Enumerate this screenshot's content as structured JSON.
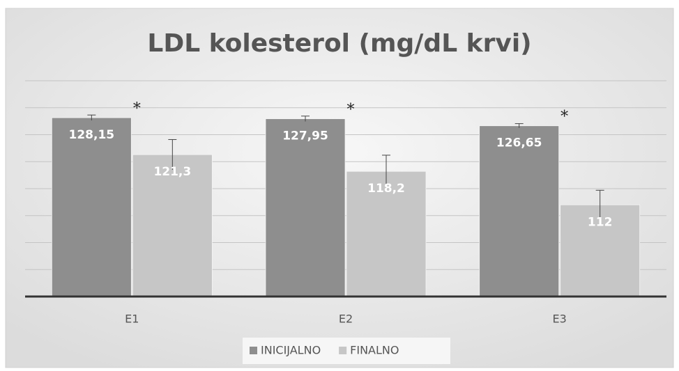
{
  "chart_data": {
    "type": "bar",
    "title": "LDL kolesterol (mg/dL krvi)",
    "categories": [
      "E1",
      "E2",
      "E3"
    ],
    "series": [
      {
        "name": "INICIJALNO",
        "color": "#8e8e8e",
        "values": [
          128.15,
          127.95,
          126.65
        ],
        "value_labels": [
          "128,15",
          "127,95",
          "126,65"
        ],
        "errors": [
          0.5,
          0.5,
          0.4
        ]
      },
      {
        "name": "FINALNO",
        "color": "#c6c6c6",
        "values": [
          121.3,
          118.2,
          112
        ],
        "value_labels": [
          "121,3",
          "118,2",
          "112"
        ],
        "errors": [
          2.8,
          3.0,
          2.7
        ]
      }
    ],
    "annotations": [
      "*",
      "*",
      "*"
    ],
    "ylim": [
      95,
      135
    ],
    "yticks": [
      95,
      100,
      105,
      110,
      115,
      120,
      125,
      130,
      135
    ],
    "grid": true,
    "legend": "bottom"
  }
}
